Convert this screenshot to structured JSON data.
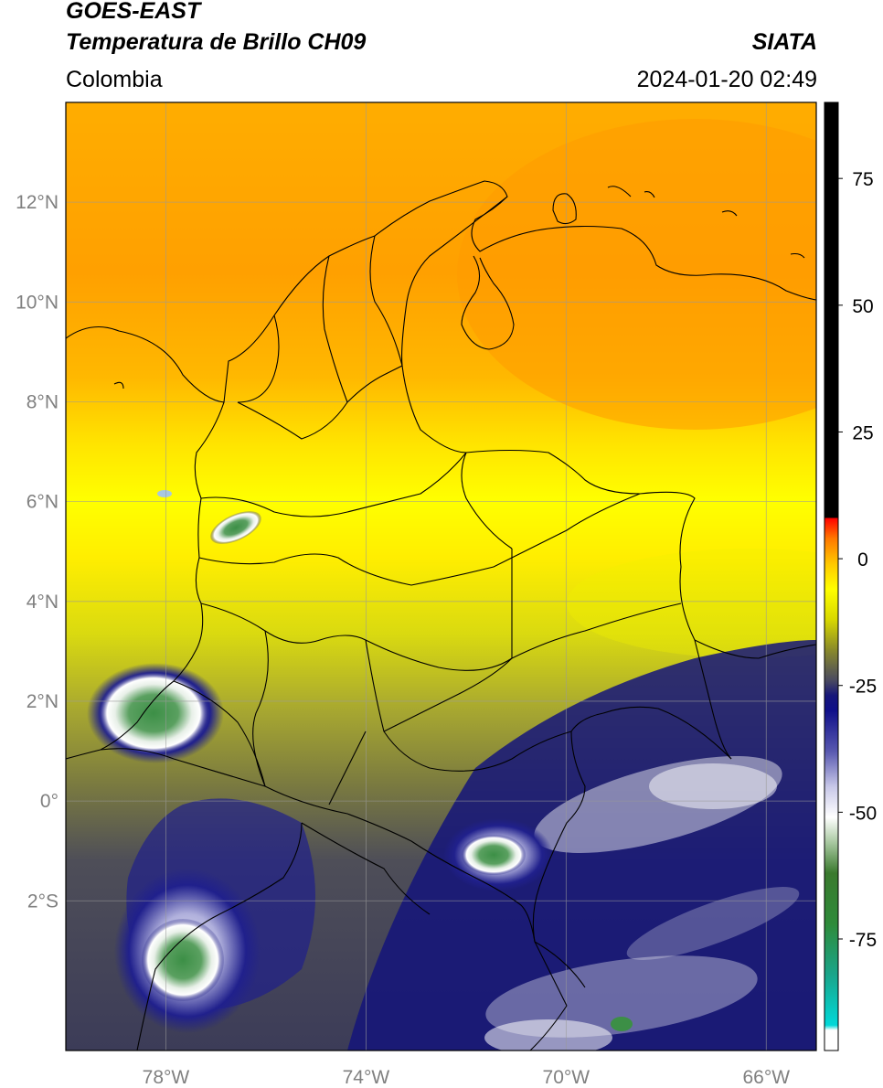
{
  "header": {
    "satellite": "GOES-EAST",
    "product": "Temperatura de Brillo CH09",
    "region": "Colombia",
    "source": "SIATA",
    "datetime": "2024-01-20 02:49"
  },
  "map": {
    "lon_range": [
      -80,
      -65
    ],
    "lat_range": [
      -5,
      14
    ],
    "lat_ticks": [
      {
        "value": 12,
        "label": "12°N"
      },
      {
        "value": 10,
        "label": "10°N"
      },
      {
        "value": 8,
        "label": "8°N"
      },
      {
        "value": 6,
        "label": "6°N"
      },
      {
        "value": 4,
        "label": "4°N"
      },
      {
        "value": 2,
        "label": "2°N"
      },
      {
        "value": 0,
        "label": "0°"
      },
      {
        "value": -2,
        "label": "2°S"
      }
    ],
    "lon_ticks": [
      {
        "value": -78,
        "label": "78°W"
      },
      {
        "value": -74,
        "label": "74°W"
      },
      {
        "value": -70,
        "label": "70°W"
      },
      {
        "value": -66,
        "label": "66°W"
      }
    ],
    "gridlines": true
  },
  "colorbar": {
    "range": [
      -97,
      90
    ],
    "ticks": [
      {
        "value": 75,
        "label": "75"
      },
      {
        "value": 50,
        "label": "50"
      },
      {
        "value": 25,
        "label": "25"
      },
      {
        "value": 0,
        "label": "0"
      },
      {
        "value": -25,
        "label": "-25"
      },
      {
        "value": -50,
        "label": "-50"
      },
      {
        "value": -75,
        "label": "-75"
      }
    ],
    "stops": [
      {
        "v": -97,
        "c": "#ffffff"
      },
      {
        "v": -93,
        "c": "#ffffff"
      },
      {
        "v": -92,
        "c": "#00d8d8"
      },
      {
        "v": -82,
        "c": "#1aa58a"
      },
      {
        "v": -72,
        "c": "#2e8b3a"
      },
      {
        "v": -62,
        "c": "#3a7a2e"
      },
      {
        "v": -56,
        "c": "#a8c8a0"
      },
      {
        "v": -51,
        "c": "#ffffff"
      },
      {
        "v": -45,
        "c": "#c8c8e8"
      },
      {
        "v": -38,
        "c": "#5858b0"
      },
      {
        "v": -30,
        "c": "#10108a"
      },
      {
        "v": -27,
        "c": "#16167a"
      },
      {
        "v": -24,
        "c": "#4a4a60"
      },
      {
        "v": -18,
        "c": "#8a8a2a"
      },
      {
        "v": -12,
        "c": "#d8d800"
      },
      {
        "v": -6,
        "c": "#ffff00"
      },
      {
        "v": -1,
        "c": "#ffc800"
      },
      {
        "v": 4,
        "c": "#ff7800"
      },
      {
        "v": 8,
        "c": "#ff0000"
      },
      {
        "v": 8.01,
        "c": "#000000"
      },
      {
        "v": 90,
        "c": "#000000"
      }
    ]
  },
  "colors": {
    "north_field": "#ffa500",
    "mid_field": "#ffef00",
    "south_field": "#26266a",
    "cloud_core": "#3c8f46",
    "border": "#000000"
  }
}
